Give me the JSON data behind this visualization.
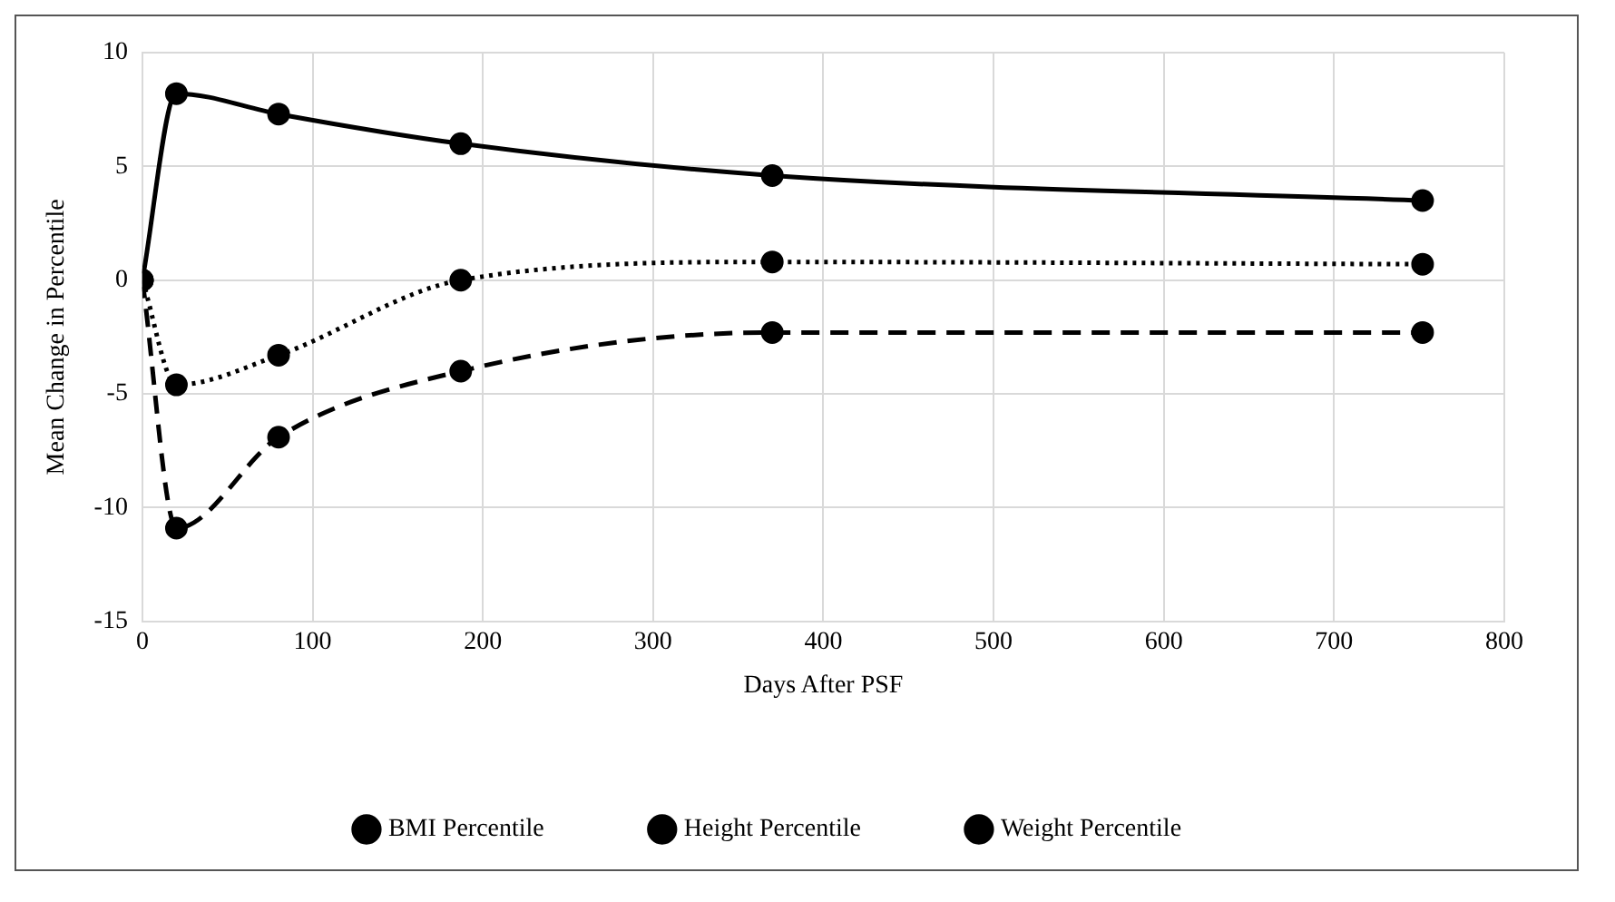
{
  "chart_data": {
    "type": "line",
    "xlabel": "Days After PSF",
    "ylabel": "Mean Change in Percentile",
    "x": [
      0,
      20,
      80,
      187,
      370,
      752
    ],
    "series": [
      {
        "name": "BMI Percentile",
        "color": "#000000",
        "line_style": "dashed",
        "values": [
          0,
          -10.9,
          -6.9,
          -4.0,
          -2.3,
          -2.3
        ]
      },
      {
        "name": "Height Percentile",
        "color": "#000000",
        "line_style": "solid",
        "values": [
          0,
          8.2,
          7.3,
          6.0,
          4.6,
          3.5
        ]
      },
      {
        "name": "Weight Percentile",
        "color": "#000000",
        "line_style": "dotted",
        "values": [
          0,
          -4.6,
          -3.3,
          0,
          0.8,
          0.7
        ]
      }
    ],
    "xlim": [
      0,
      800
    ],
    "xticks": [
      0,
      100,
      200,
      300,
      400,
      500,
      600,
      700,
      800
    ],
    "ylim": [
      -15,
      10
    ],
    "yticks": [
      -15,
      -10,
      -5,
      0,
      5,
      10
    ],
    "grid": true,
    "legend": "bottom",
    "marker": "circle"
  }
}
